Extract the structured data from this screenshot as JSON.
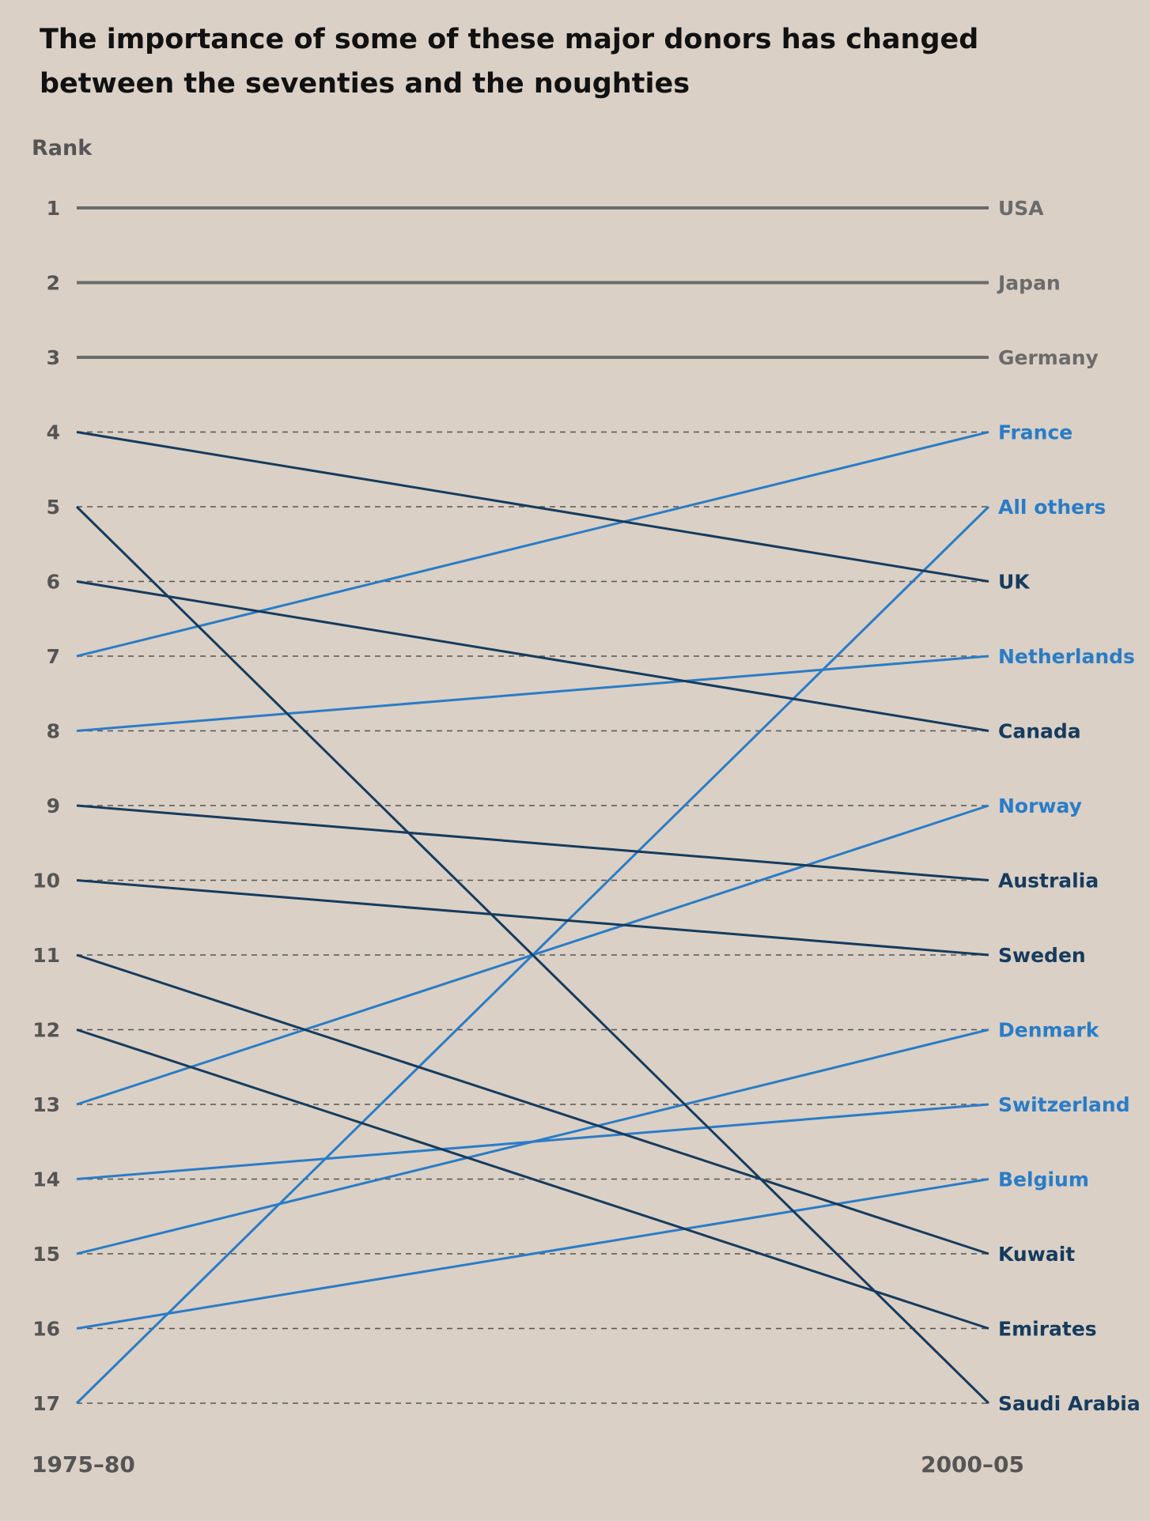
{
  "chart_data": {
    "type": "line",
    "title": "The importance of some of these major donors has changed between the seventies and the noughties",
    "ylabel": "Rank",
    "x": [
      "1975–80",
      "2000–05"
    ],
    "ylim": [
      1,
      17
    ],
    "y_ticks": [
      1,
      2,
      3,
      4,
      5,
      6,
      7,
      8,
      9,
      10,
      11,
      12,
      13,
      14,
      15,
      16,
      17
    ],
    "grid": true,
    "legend": "direct labels at right end of lines",
    "colors": {
      "same": "#6b6b6b",
      "rose": "#2a7cc7",
      "fell": "#163b5e"
    },
    "series": [
      {
        "name": "USA",
        "values": [
          1,
          1
        ],
        "group": "same"
      },
      {
        "name": "Japan",
        "values": [
          2,
          2
        ],
        "group": "same"
      },
      {
        "name": "Germany",
        "values": [
          3,
          3
        ],
        "group": "same"
      },
      {
        "name": "France",
        "values": [
          7,
          4
        ],
        "group": "rose"
      },
      {
        "name": "All others",
        "values": [
          17,
          5
        ],
        "group": "rose"
      },
      {
        "name": "UK",
        "values": [
          4,
          6
        ],
        "group": "fell"
      },
      {
        "name": "Netherlands",
        "values": [
          8,
          7
        ],
        "group": "rose"
      },
      {
        "name": "Canada",
        "values": [
          6,
          8
        ],
        "group": "fell"
      },
      {
        "name": "Norway",
        "values": [
          13,
          9
        ],
        "group": "rose"
      },
      {
        "name": "Australia",
        "values": [
          9,
          10
        ],
        "group": "fell"
      },
      {
        "name": "Sweden",
        "values": [
          10,
          11
        ],
        "group": "fell"
      },
      {
        "name": "Denmark",
        "values": [
          15,
          12
        ],
        "group": "rose"
      },
      {
        "name": "Switzerland",
        "values": [
          14,
          13
        ],
        "group": "rose"
      },
      {
        "name": "Belgium",
        "values": [
          16,
          14
        ],
        "group": "rose"
      },
      {
        "name": "Kuwait",
        "values": [
          11,
          15
        ],
        "group": "fell"
      },
      {
        "name": "Emirates",
        "values": [
          12,
          16
        ],
        "group": "fell"
      },
      {
        "name": "Saudi Arabia",
        "values": [
          5,
          17
        ],
        "group": "fell"
      }
    ]
  }
}
